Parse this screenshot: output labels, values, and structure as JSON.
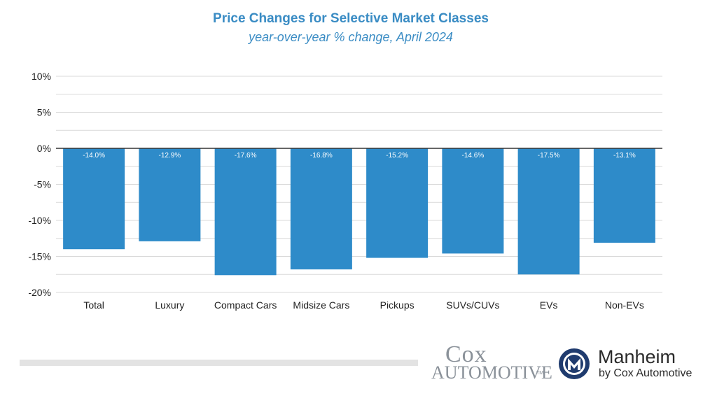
{
  "chart_data": {
    "type": "bar",
    "title": "Price Changes for Selective Market Classes",
    "subtitle": "year-over-year % change, April 2024",
    "categories": [
      "Total",
      "Luxury",
      "Compact Cars",
      "Midsize Cars",
      "Pickups",
      "SUVs/CUVs",
      "EVs",
      "Non-EVs"
    ],
    "values": [
      -14.0,
      -12.9,
      -17.6,
      -16.8,
      -15.2,
      -14.6,
      -17.5,
      -13.1
    ],
    "data_labels": [
      "-14.0%",
      "-12.9%",
      "-17.6%",
      "-16.8%",
      "-15.2%",
      "-14.6%",
      "-17.5%",
      "-13.1%"
    ],
    "ylim": [
      -20,
      10
    ],
    "yticks": [
      10,
      5,
      0,
      -5,
      -10,
      -15,
      -20
    ],
    "ytick_labels": [
      "10%",
      "5%",
      "0%",
      "-5%",
      "-10%",
      "-15%",
      "-20%"
    ],
    "minor_grid_step": 2.5,
    "xlabel": "",
    "ylabel": "",
    "grid": true,
    "legend": "none",
    "bar_color": "#2e8bc9"
  },
  "logos": {
    "cox_line1": "Cox",
    "cox_line2": "AUTOMOTIVE",
    "cox_tm": "TM",
    "manheim_name": "Manheim",
    "manheim_sub": "by Cox Automotive"
  },
  "colors": {
    "title": "#3a8cc4",
    "bar": "#2e8bc9",
    "grid": "#d9d9d9",
    "zero_line": "#333333",
    "cox_gray": "#8a9199",
    "manheim_navy": "#1f3b6e"
  }
}
